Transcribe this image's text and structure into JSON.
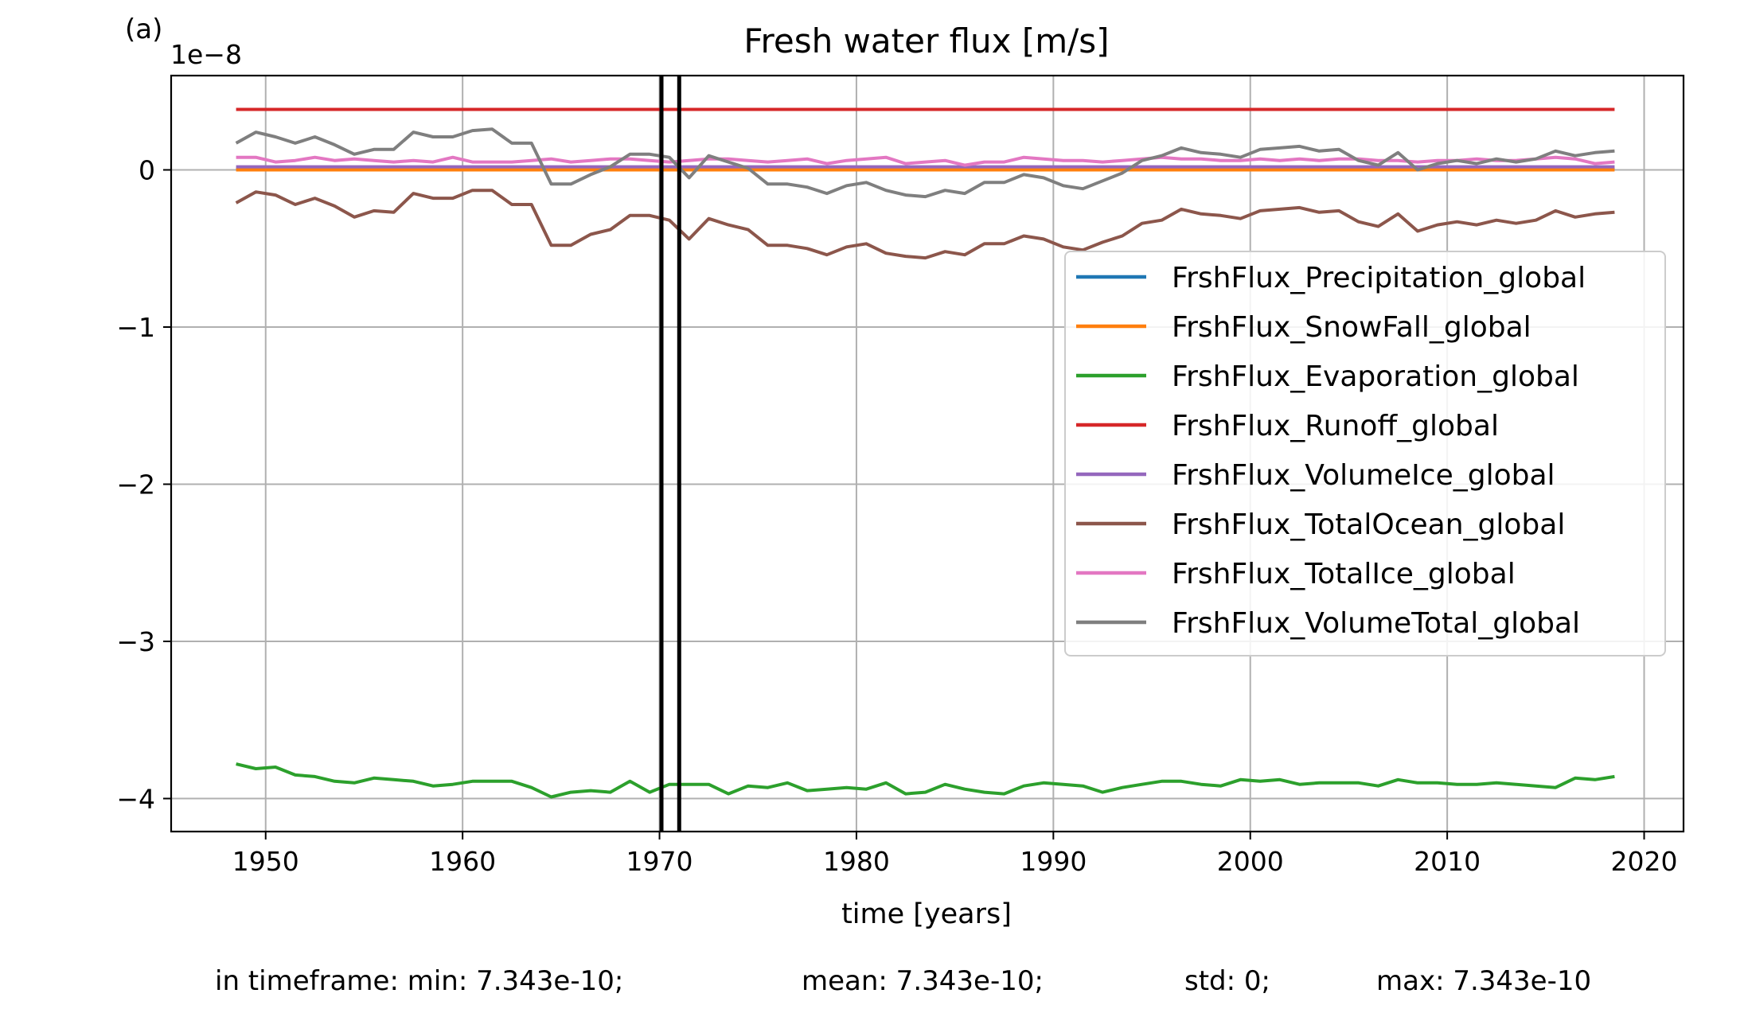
{
  "panel_label": "(a)",
  "footer": {
    "min": "in timeframe: min: 7.343e-10;",
    "mean": "mean: 7.343e-10;",
    "std": "std: 0;",
    "max": "max: 7.343e-10"
  },
  "colors": {
    "precipitation": "#1f77b4",
    "snowfall": "#ff7f0e",
    "evaporation": "#2ca02c",
    "runoff": "#d62728",
    "volumeice": "#9467bd",
    "totalocean": "#8c564b",
    "totalice": "#e377c2",
    "volumetotal": "#7f7f7f",
    "grid": "#b0b0b0",
    "marker": "#000000"
  },
  "chart_data": {
    "type": "line",
    "title": "Fresh water flux [m/s]",
    "xlabel": "time [years]",
    "ylabel": "",
    "y_scale_label": "1e−8",
    "xlim": [
      1945.2,
      2022.0
    ],
    "ylim": [
      -4.21,
      0.6
    ],
    "grid": true,
    "legend_position": "center-right",
    "x_ticks": [
      1950,
      1960,
      1970,
      1980,
      1990,
      2000,
      2010,
      2020
    ],
    "x_tick_labels": [
      "1950",
      "1960",
      "1970",
      "1980",
      "1990",
      "2000",
      "2010",
      "2020"
    ],
    "y_ticks": [
      0,
      -1,
      -2,
      -3,
      -4
    ],
    "y_tick_labels": [
      "0",
      "−1",
      "−2",
      "−3",
      "−4"
    ],
    "vertical_lines": [
      1970.1,
      1971.0
    ],
    "x": [
      1948.5,
      1949.5,
      1950.5,
      1951.5,
      1952.5,
      1953.5,
      1954.5,
      1955.5,
      1956.5,
      1957.5,
      1958.5,
      1959.5,
      1960.5,
      1961.5,
      1962.5,
      1963.5,
      1964.5,
      1965.5,
      1966.5,
      1967.5,
      1968.5,
      1969.5,
      1970.5,
      1971.5,
      1972.5,
      1973.5,
      1974.5,
      1975.5,
      1976.5,
      1977.5,
      1978.5,
      1979.5,
      1980.5,
      1981.5,
      1982.5,
      1983.5,
      1984.5,
      1985.5,
      1986.5,
      1987.5,
      1988.5,
      1989.5,
      1990.5,
      1991.5,
      1992.5,
      1993.5,
      1994.5,
      1995.5,
      1996.5,
      1997.5,
      1998.5,
      1999.5,
      2000.5,
      2001.5,
      2002.5,
      2003.5,
      2004.5,
      2005.5,
      2006.5,
      2007.5,
      2008.5,
      2009.5,
      2010.5,
      2011.5,
      2012.5,
      2013.5,
      2014.5,
      2015.5,
      2016.5,
      2017.5,
      2018.5
    ],
    "series": [
      {
        "name": "FrshFlux_Precipitation_global",
        "color_key": "precipitation",
        "constant": 0.005
      },
      {
        "name": "FrshFlux_SnowFall_global",
        "color_key": "snowfall",
        "constant": 0.0
      },
      {
        "name": "FrshFlux_Evaporation_global",
        "color_key": "evaporation",
        "values": [
          -3.78,
          -3.81,
          -3.8,
          -3.85,
          -3.86,
          -3.89,
          -3.9,
          -3.87,
          -3.88,
          -3.89,
          -3.92,
          -3.91,
          -3.89,
          -3.89,
          -3.89,
          -3.93,
          -3.99,
          -3.96,
          -3.95,
          -3.96,
          -3.89,
          -3.96,
          -3.91,
          -3.91,
          -3.91,
          -3.97,
          -3.92,
          -3.93,
          -3.9,
          -3.95,
          -3.94,
          -3.93,
          -3.94,
          -3.9,
          -3.97,
          -3.96,
          -3.91,
          -3.94,
          -3.96,
          -3.97,
          -3.92,
          -3.9,
          -3.91,
          -3.92,
          -3.96,
          -3.93,
          -3.91,
          -3.89,
          -3.89,
          -3.91,
          -3.92,
          -3.88,
          -3.89,
          -3.88,
          -3.91,
          -3.9,
          -3.9,
          -3.9,
          -3.92,
          -3.88,
          -3.9,
          -3.9,
          -3.91,
          -3.91,
          -3.9,
          -3.91,
          -3.92,
          -3.93,
          -3.87,
          -3.88,
          -3.86
        ]
      },
      {
        "name": "FrshFlux_Runoff_global",
        "color_key": "runoff",
        "constant": 0.385
      },
      {
        "name": "FrshFlux_VolumeIce_global",
        "color_key": "volumeice",
        "constant": 0.02
      },
      {
        "name": "FrshFlux_TotalOcean_global",
        "color_key": "totalocean",
        "values": [
          -0.21,
          -0.14,
          -0.16,
          -0.22,
          -0.18,
          -0.23,
          -0.3,
          -0.26,
          -0.27,
          -0.15,
          -0.18,
          -0.18,
          -0.13,
          -0.13,
          -0.22,
          -0.22,
          -0.48,
          -0.48,
          -0.41,
          -0.38,
          -0.29,
          -0.29,
          -0.32,
          -0.44,
          -0.31,
          -0.35,
          -0.38,
          -0.48,
          -0.48,
          -0.5,
          -0.54,
          -0.49,
          -0.47,
          -0.53,
          -0.55,
          -0.56,
          -0.52,
          -0.54,
          -0.47,
          -0.47,
          -0.42,
          -0.44,
          -0.49,
          -0.51,
          -0.46,
          -0.42,
          -0.34,
          -0.32,
          -0.25,
          -0.28,
          -0.29,
          -0.31,
          -0.26,
          -0.25,
          -0.24,
          -0.27,
          -0.26,
          -0.33,
          -0.36,
          -0.28,
          -0.39,
          -0.35,
          -0.33,
          -0.35,
          -0.32,
          -0.34,
          -0.32,
          -0.26,
          -0.3,
          -0.28,
          -0.27
        ]
      },
      {
        "name": "FrshFlux_TotalIce_global",
        "color_key": "totalice",
        "values": [
          0.08,
          0.08,
          0.05,
          0.06,
          0.08,
          0.06,
          0.07,
          0.06,
          0.05,
          0.06,
          0.05,
          0.08,
          0.05,
          0.05,
          0.05,
          0.06,
          0.07,
          0.05,
          0.06,
          0.07,
          0.07,
          0.06,
          0.05,
          0.06,
          0.07,
          0.07,
          0.06,
          0.05,
          0.06,
          0.07,
          0.04,
          0.06,
          0.07,
          0.08,
          0.04,
          0.05,
          0.06,
          0.03,
          0.05,
          0.05,
          0.08,
          0.07,
          0.06,
          0.06,
          0.05,
          0.06,
          0.07,
          0.08,
          0.07,
          0.07,
          0.06,
          0.06,
          0.07,
          0.06,
          0.07,
          0.06,
          0.07,
          0.07,
          0.06,
          0.06,
          0.05,
          0.06,
          0.06,
          0.07,
          0.06,
          0.06,
          0.07,
          0.08,
          0.07,
          0.04,
          0.05
        ]
      },
      {
        "name": "FrshFlux_VolumeTotal_global",
        "color_key": "volumetotal",
        "values": [
          0.17,
          0.24,
          0.21,
          0.17,
          0.21,
          0.16,
          0.1,
          0.13,
          0.13,
          0.24,
          0.21,
          0.21,
          0.25,
          0.26,
          0.17,
          0.17,
          -0.09,
          -0.09,
          -0.03,
          0.02,
          0.1,
          0.1,
          0.08,
          -0.05,
          0.09,
          0.05,
          0.01,
          -0.09,
          -0.09,
          -0.11,
          -0.15,
          -0.1,
          -0.08,
          -0.13,
          -0.16,
          -0.17,
          -0.13,
          -0.15,
          -0.08,
          -0.08,
          -0.03,
          -0.05,
          -0.1,
          -0.12,
          -0.07,
          -0.02,
          0.06,
          0.09,
          0.14,
          0.11,
          0.1,
          0.08,
          0.13,
          0.14,
          0.15,
          0.12,
          0.13,
          0.06,
          0.03,
          0.11,
          0.0,
          0.04,
          0.06,
          0.04,
          0.07,
          0.05,
          0.07,
          0.12,
          0.09,
          0.11,
          0.12
        ]
      }
    ]
  }
}
